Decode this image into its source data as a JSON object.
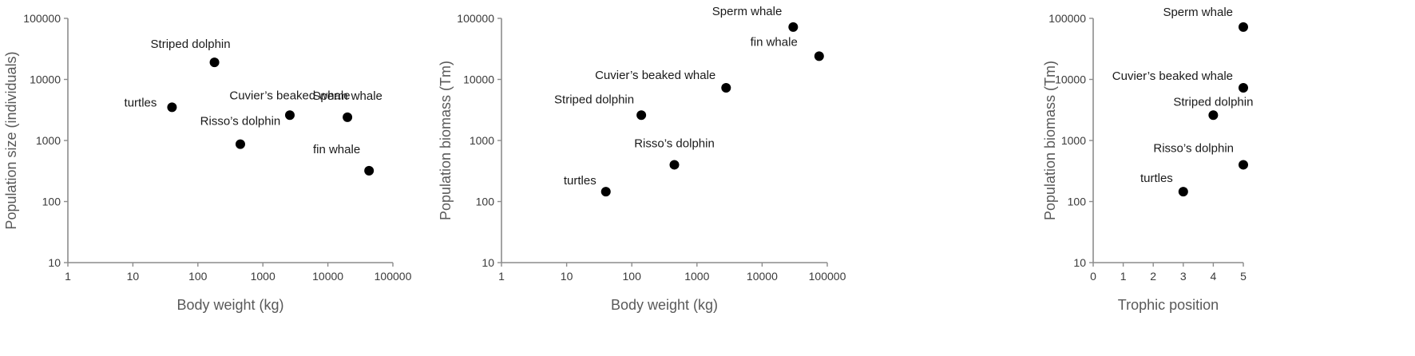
{
  "chart_data": [
    {
      "type": "scatter",
      "xscale": "log",
      "yscale": "log",
      "xlim": [
        1,
        100000
      ],
      "ylim": [
        10,
        100000
      ],
      "xticks": [
        "1",
        "10",
        "100",
        "1000",
        "10000",
        "100000"
      ],
      "yticks": [
        "10",
        "100",
        "1000",
        "10000",
        "100000"
      ],
      "xlabel": "Body weight (kg)",
      "ylabel": "Population size (individuals)",
      "points": [
        {
          "label": "Striped dolphin",
          "x": 180,
          "y": 19000
        },
        {
          "label": "turtles",
          "x": 40,
          "y": 3500
        },
        {
          "label": "Cuvier’s beaked whale",
          "x": 2600,
          "y": 2600
        },
        {
          "label": "Sperm whale",
          "x": 20000,
          "y": 2400
        },
        {
          "label": "Risso’s dolphin",
          "x": 450,
          "y": 870
        },
        {
          "label": "fin whale",
          "x": 43000,
          "y": 320
        }
      ]
    },
    {
      "type": "scatter",
      "xscale": "log",
      "yscale": "log",
      "xlim": [
        1,
        100000
      ],
      "ylim": [
        10,
        100000
      ],
      "xticks": [
        "1",
        "10",
        "100",
        "1000",
        "10000",
        "100000"
      ],
      "yticks": [
        "10",
        "100",
        "1000",
        "10000",
        "100000"
      ],
      "xlabel": "Body weight (kg)",
      "ylabel": "Population biomass (Tm)",
      "points": [
        {
          "label": "Sperm whale",
          "x": 30000,
          "y": 72000
        },
        {
          "label": "fin whale",
          "x": 75000,
          "y": 24000
        },
        {
          "label": "Cuvier’s beaked whale",
          "x": 2800,
          "y": 7300
        },
        {
          "label": "Striped dolphin",
          "x": 140,
          "y": 2600
        },
        {
          "label": "Risso’s dolphin",
          "x": 450,
          "y": 400
        },
        {
          "label": "turtles",
          "x": 40,
          "y": 145
        }
      ]
    },
    {
      "type": "scatter",
      "xscale": "linear",
      "yscale": "log",
      "xlim": [
        0,
        5
      ],
      "ylim": [
        10,
        100000
      ],
      "xticks": [
        "0",
        "1",
        "2",
        "3",
        "4",
        "5"
      ],
      "yticks": [
        "10",
        "100",
        "1000",
        "10000",
        "100000"
      ],
      "xlabel": "Trophic position",
      "ylabel": "Population biomass (Tm)",
      "points": [
        {
          "label": "Sperm whale",
          "x": 5,
          "y": 72000
        },
        {
          "label": "Cuvier’s beaked whale",
          "x": 5,
          "y": 7300
        },
        {
          "label": "Striped dolphin",
          "x": 4,
          "y": 2600
        },
        {
          "label": "Risso’s dolphin",
          "x": 5,
          "y": 400
        },
        {
          "label": "turtles",
          "x": 3,
          "y": 145
        }
      ]
    }
  ]
}
